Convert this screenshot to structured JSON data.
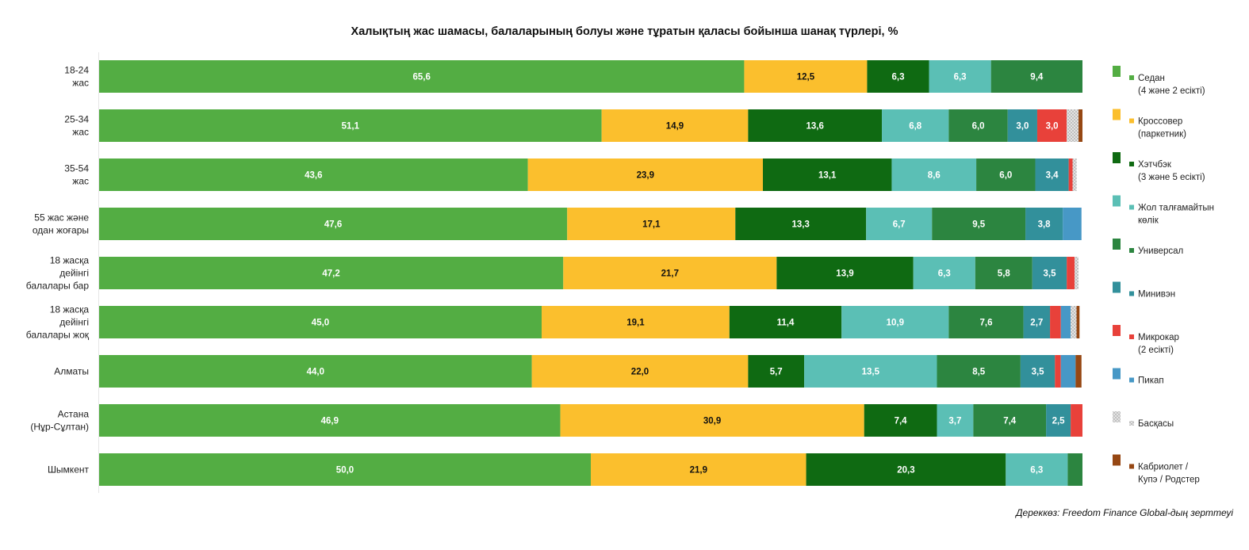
{
  "chart_data": {
    "type": "bar",
    "orientation": "horizontal",
    "stacked": true,
    "title": "Халықтың жас шамасы, балаларының болуы және тұратын қаласы бойынша шанақ түрлері, %",
    "xlim": [
      0,
      100
    ],
    "grid": false,
    "legend_position": "right",
    "categories": [
      [
        "18-24",
        "жас"
      ],
      [
        "25-34",
        "жас"
      ],
      [
        "35-54",
        "жас"
      ],
      [
        "55 жас және",
        "одан жоғары"
      ],
      [
        "18 жасқа",
        "дейінгі",
        "балалары бар"
      ],
      [
        "18 жасқа",
        "дейінгі",
        "балалары жоқ"
      ],
      [
        "Алматы"
      ],
      [
        "Астана",
        "(Нұр-Сұлтан)"
      ],
      [
        "Шымкент"
      ]
    ],
    "series": [
      {
        "name": [
          "Седан",
          "(4 және 2 есікті)"
        ],
        "color": "#53ad43",
        "label_color": "#ffffff",
        "pattern": false,
        "values": [
          65.6,
          51.1,
          43.6,
          47.6,
          47.2,
          45.0,
          44.0,
          46.9,
          50.0
        ]
      },
      {
        "name": [
          "Кроссовер",
          "(паркетник)"
        ],
        "color": "#fbbf2d",
        "label_color": "#111111",
        "pattern": false,
        "values": [
          12.5,
          14.9,
          23.9,
          17.1,
          21.7,
          19.1,
          22.0,
          30.9,
          21.9
        ]
      },
      {
        "name": [
          "Хэтчбэк",
          "(3 және 5 есікті)"
        ],
        "color": "#0f6a12",
        "label_color": "#ffffff",
        "pattern": false,
        "values": [
          6.3,
          13.6,
          13.1,
          13.3,
          13.9,
          11.4,
          5.7,
          7.4,
          20.3
        ]
      },
      {
        "name": [
          "Жол талғамайтын",
          "көлік"
        ],
        "color": "#5bbfb5",
        "label_color": "#ffffff",
        "pattern": false,
        "values": [
          6.3,
          6.8,
          8.6,
          6.7,
          6.3,
          10.9,
          13.5,
          3.7,
          6.3
        ]
      },
      {
        "name": [
          "Универсал"
        ],
        "color": "#2c8540",
        "label_color": "#ffffff",
        "pattern": false,
        "values": [
          9.4,
          6.0,
          6.0,
          9.5,
          5.8,
          7.6,
          8.5,
          7.4,
          1.5
        ]
      },
      {
        "name": [
          "Минивэн"
        ],
        "color": "#32909b",
        "label_color": "#ffffff",
        "pattern": false,
        "values": [
          0,
          3.0,
          3.4,
          3.8,
          3.5,
          2.7,
          3.5,
          2.5,
          0
        ]
      },
      {
        "name": [
          "Микрокар",
          "(2 есікті)"
        ],
        "color": "#e8413a",
        "label_color": "#ffffff",
        "pattern": false,
        "values": [
          0,
          3.0,
          0.4,
          0,
          0.8,
          1.1,
          0.6,
          1.2,
          0
        ]
      },
      {
        "name": [
          "Пикап"
        ],
        "color": "#4798c6",
        "label_color": "#ffffff",
        "pattern": false,
        "values": [
          0,
          0,
          0,
          1.9,
          0,
          1.0,
          1.5,
          0,
          0
        ]
      },
      {
        "name": [
          "Басқасы"
        ],
        "color": "#dcdcdc",
        "label_color": "#111111",
        "pattern": true,
        "values": [
          0,
          1.2,
          0.4,
          0,
          0.4,
          0.6,
          0,
          0,
          0
        ]
      },
      {
        "name": [
          "Кабриолет /",
          "Купэ / Родстер"
        ],
        "color": "#964713",
        "label_color": "#ffffff",
        "pattern": false,
        "values": [
          0,
          0.5,
          0,
          0,
          0,
          0.3,
          0.6,
          0,
          0
        ]
      }
    ],
    "data_labels": [
      [
        "65,6",
        "12,5",
        "6,3",
        "6,3",
        "9,4",
        "",
        "",
        "",
        "",
        ""
      ],
      [
        "51,1",
        "14,9",
        "13,6",
        "6,8",
        "6,0",
        "3,0",
        "3,0",
        "",
        "",
        ""
      ],
      [
        "43,6",
        "23,9",
        "13,1",
        "8,6",
        "6,0",
        "3,4",
        "",
        "",
        "",
        ""
      ],
      [
        "47,6",
        "17,1",
        "13,3",
        "6,7",
        "9,5",
        "3,8",
        "",
        "",
        "",
        ""
      ],
      [
        "47,2",
        "21,7",
        "13,9",
        "6,3",
        "5,8",
        "3,5",
        "",
        "",
        "",
        ""
      ],
      [
        "45,0",
        "19,1",
        "11,4",
        "10,9",
        "7,6",
        "2,7",
        "",
        "",
        "",
        ""
      ],
      [
        "44,0",
        "22,0",
        "5,7",
        "13,5",
        "8,5",
        "3,5",
        "",
        "",
        "",
        ""
      ],
      [
        "46,9",
        "30,9",
        "7,4",
        "3,7",
        "7,4",
        "2,5",
        "",
        "",
        "",
        ""
      ],
      [
        "50,0",
        "21,9",
        "20,3",
        "6,3",
        "",
        "",
        "",
        "",
        "",
        ""
      ]
    ]
  },
  "source_note": "Дереккөз: Freedom Finance Global-дың зерттеуі"
}
